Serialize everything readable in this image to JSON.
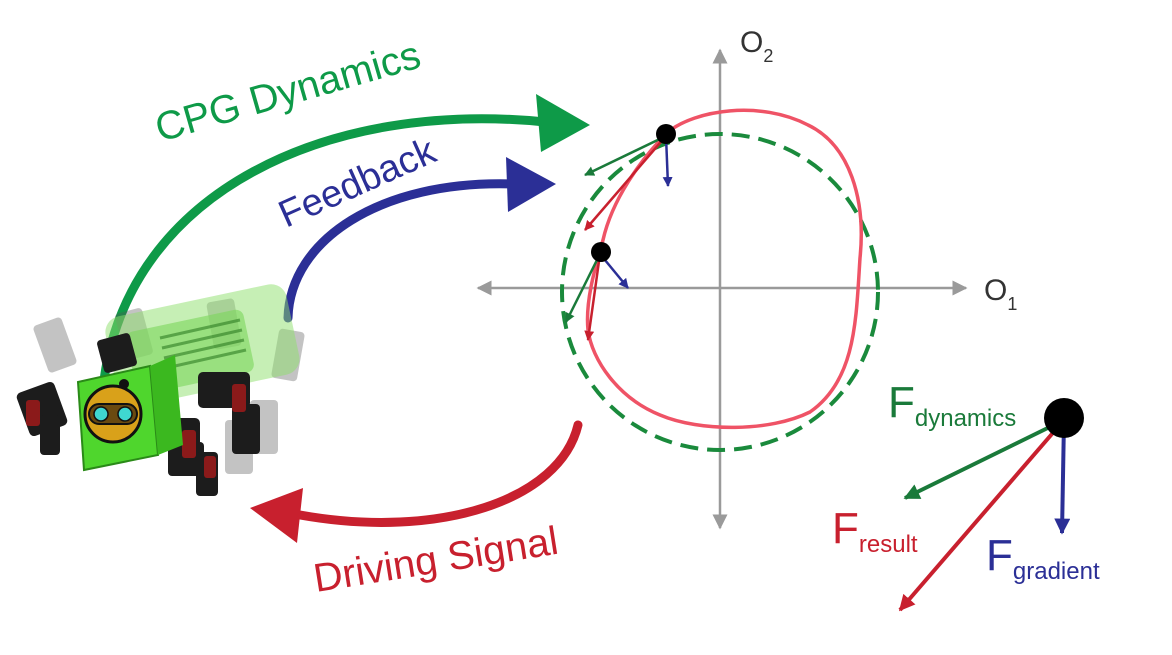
{
  "labels": {
    "cpg_dynamics": "CPG Dynamics",
    "feedback": "Feedback",
    "driving_signal": "Driving Signal"
  },
  "axes": {
    "o1": {
      "base": "O",
      "sub": "1"
    },
    "o2": {
      "base": "O",
      "sub": "2"
    }
  },
  "forces": {
    "dynamics": {
      "base": "F",
      "sub": "dynamics"
    },
    "result": {
      "base": "F",
      "sub": "result"
    },
    "gradient": {
      "base": "F",
      "sub": "gradient"
    }
  },
  "colors": {
    "dynamics": "#1a7a3a",
    "cpg_arrow": "#0e9a48",
    "feedback": "#2b2f96",
    "result": "#c8202e",
    "limit_cycle": "#ef5366",
    "axis": "#9a9a9a",
    "robot_body": "#56e03c"
  },
  "robot": {
    "icon": "hexapod-robot-icon"
  }
}
